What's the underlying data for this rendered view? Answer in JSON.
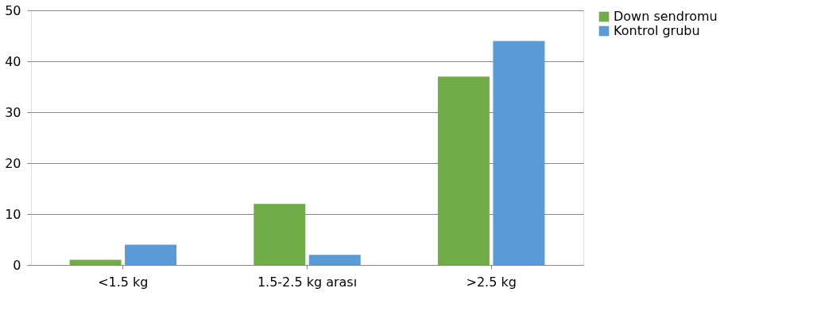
{
  "chart_data": {
    "type": "bar",
    "categories": [
      "<1.5 kg",
      "1.5-2.5 kg arası",
      ">2.5 kg"
    ],
    "series": [
      {
        "name": "Down sendromu",
        "color": "#70ad47",
        "values": [
          1,
          12,
          37
        ]
      },
      {
        "name": "Kontrol grubu",
        "color": "#5b9bd5",
        "values": [
          4,
          2,
          44
        ]
      }
    ],
    "ylim": [
      0,
      50
    ],
    "yticks": [
      0,
      10,
      20,
      30,
      40,
      50
    ],
    "grid": "y",
    "legend": "right"
  }
}
